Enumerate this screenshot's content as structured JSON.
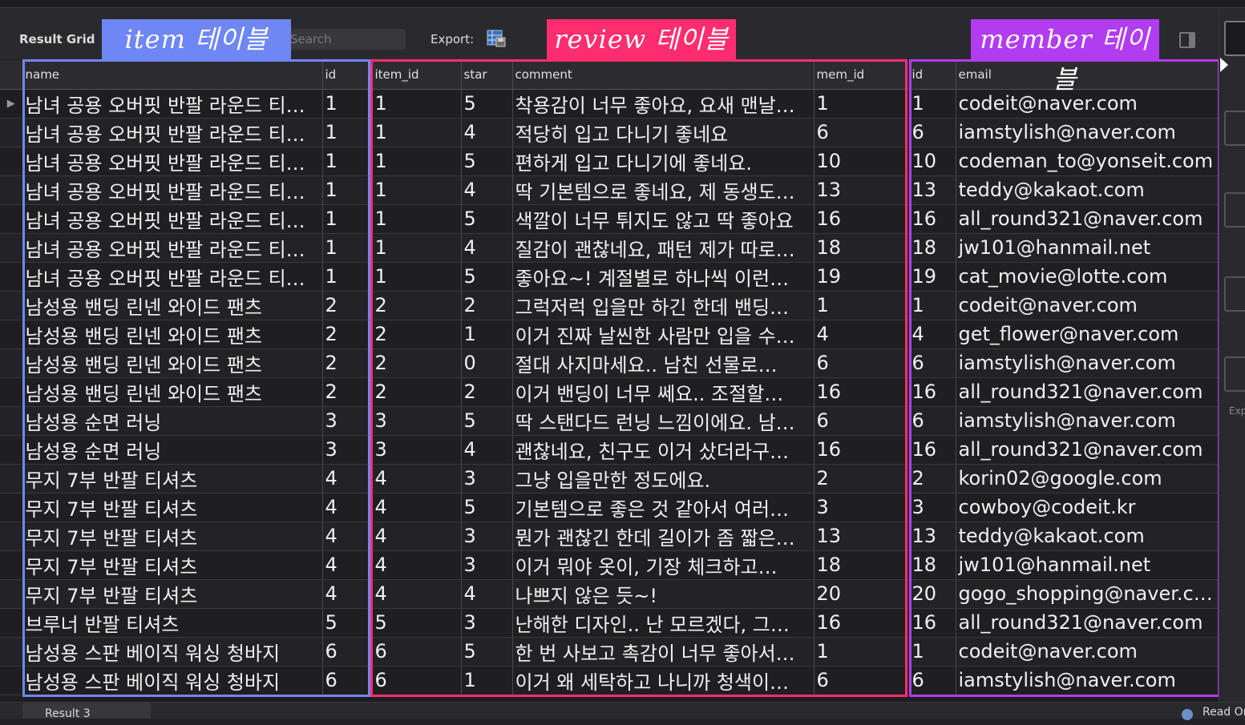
{
  "toolbar": {
    "result_grid_label": "Result Grid",
    "search_placeholder": "Search",
    "export_label": "Export:"
  },
  "annotations": {
    "item": "item 테이블",
    "review": "review 테이블",
    "member": "member 테이블"
  },
  "columns": [
    "name",
    "id",
    "item_id",
    "star",
    "comment",
    "mem_id",
    "id",
    "email"
  ],
  "rows": [
    [
      "남녀 공용 오버핏 반팔 라운드 티…",
      "1",
      "1",
      "5",
      "착용감이 너무 좋아요, 요새 맨날…",
      "1",
      "1",
      "codeit@naver.com"
    ],
    [
      "남녀 공용 오버핏 반팔 라운드 티…",
      "1",
      "1",
      "4",
      "적당히 입고 다니기 좋네요",
      "6",
      "6",
      "iamstylish@naver.com"
    ],
    [
      "남녀 공용 오버핏 반팔 라운드 티…",
      "1",
      "1",
      "5",
      "편하게 입고 다니기에 좋네요.",
      "10",
      "10",
      "codeman_to@yonseit.com"
    ],
    [
      "남녀 공용 오버핏 반팔 라운드 티…",
      "1",
      "1",
      "4",
      "딱 기본템으로 좋네요, 제 동생도…",
      "13",
      "13",
      "teddy@kakaot.com"
    ],
    [
      "남녀 공용 오버핏 반팔 라운드 티…",
      "1",
      "1",
      "5",
      "색깔이 너무 튀지도 않고 딱 좋아요",
      "16",
      "16",
      "all_round321@naver.com"
    ],
    [
      "남녀 공용 오버핏 반팔 라운드 티…",
      "1",
      "1",
      "4",
      "질감이 괜찮네요, 패턴 제가 따로…",
      "18",
      "18",
      "jw101@hanmail.net"
    ],
    [
      "남녀 공용 오버핏 반팔 라운드 티…",
      "1",
      "1",
      "5",
      "좋아요~! 계절별로 하나씩 이런…",
      "19",
      "19",
      "cat_movie@lotte.com"
    ],
    [
      "남성용 밴딩 린넨 와이드 팬츠",
      "2",
      "2",
      "2",
      "그럭저럭 입을만 하긴 한데 밴딩…",
      "1",
      "1",
      "codeit@naver.com"
    ],
    [
      "남성용 밴딩 린넨 와이드 팬츠",
      "2",
      "2",
      "1",
      "이거 진짜 날씬한 사람만 입을 수…",
      "4",
      "4",
      "get_flower@naver.com"
    ],
    [
      "남성용 밴딩 린넨 와이드 팬츠",
      "2",
      "2",
      "0",
      "절대 사지마세요.. 남친 선물로…",
      "6",
      "6",
      "iamstylish@naver.com"
    ],
    [
      "남성용 밴딩 린넨 와이드 팬츠",
      "2",
      "2",
      "2",
      "이거 밴딩이 너무 쎄요.. 조절할…",
      "16",
      "16",
      "all_round321@naver.com"
    ],
    [
      "남성용 순면 러닝",
      "3",
      "3",
      "5",
      "딱 스탠다드 런닝 느낌이에요. 남…",
      "6",
      "6",
      "iamstylish@naver.com"
    ],
    [
      "남성용 순면 러닝",
      "3",
      "3",
      "4",
      "괜찮네요, 친구도 이거 샀더라구…",
      "16",
      "16",
      "all_round321@naver.com"
    ],
    [
      "무지 7부 반팔 티셔츠",
      "4",
      "4",
      "3",
      "그냥 입을만한 정도에요.",
      "2",
      "2",
      "korin02@google.com"
    ],
    [
      "무지 7부 반팔 티셔츠",
      "4",
      "4",
      "5",
      "기본템으로 좋은 것 같아서 여러…",
      "3",
      "3",
      "cowboy@codeit.kr"
    ],
    [
      "무지 7부 반팔 티셔츠",
      "4",
      "4",
      "3",
      "뭔가 괜찮긴 한데 길이가 좀 짧은…",
      "13",
      "13",
      "teddy@kakaot.com"
    ],
    [
      "무지 7부 반팔 티셔츠",
      "4",
      "4",
      "3",
      "이거 뭐야 옷이, 기장 체크하고…",
      "18",
      "18",
      "jw101@hanmail.net"
    ],
    [
      "무지 7부 반팔 티셔츠",
      "4",
      "4",
      "4",
      "나쁘지 않은 듯~!",
      "20",
      "20",
      "gogo_shopping@naver.com"
    ],
    [
      "브루너 반팔 티셔츠",
      "5",
      "5",
      "3",
      "난해한 디자인.. 난 모르겠다, 그…",
      "16",
      "16",
      "all_round321@naver.com"
    ],
    [
      "남성용 스판 베이직 워싱 청바지",
      "6",
      "6",
      "5",
      "한 번 사보고 촉감이 너무 좋아서…",
      "1",
      "1",
      "codeit@naver.com"
    ],
    [
      "남성용 스판 베이직 워싱 청바지",
      "6",
      "6",
      "1",
      "이거 왜 세탁하고 나니까 청색이…",
      "6",
      "6",
      "iamstylish@naver.com"
    ]
  ],
  "bottom": {
    "result_tab": "Result 3",
    "status": "Read Only"
  },
  "sidebar": {
    "export_text": "Exp"
  }
}
